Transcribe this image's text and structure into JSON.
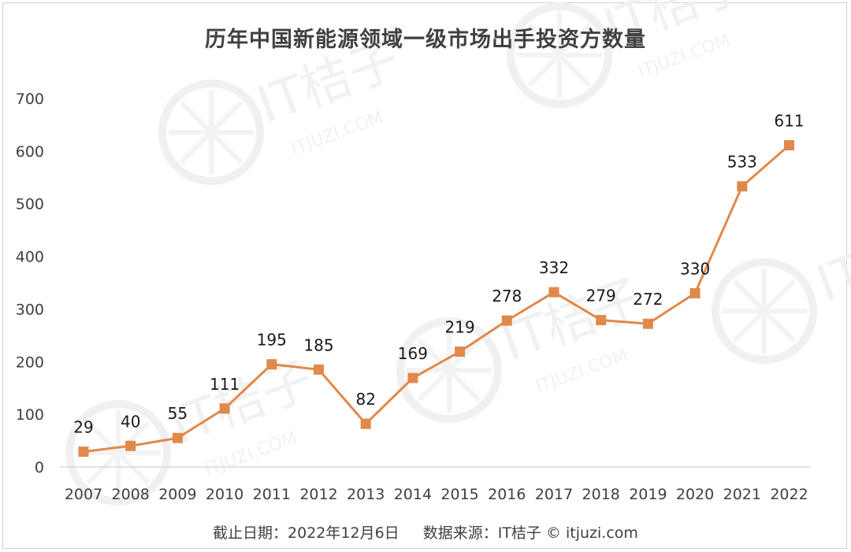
{
  "chart_data": {
    "type": "line",
    "title": "历年中国新能源领域一级市场出手投资方数量",
    "categories": [
      "2007",
      "2008",
      "2009",
      "2010",
      "2011",
      "2012",
      "2013",
      "2014",
      "2015",
      "2016",
      "2017",
      "2018",
      "2019",
      "2020",
      "2021",
      "2022"
    ],
    "series": [
      {
        "values": [
          29,
          40,
          55,
          111,
          195,
          185,
          82,
          169,
          219,
          278,
          332,
          279,
          272,
          330,
          533,
          611
        ]
      }
    ],
    "ylim": [
      0,
      700
    ],
    "yticks": [
      0,
      100,
      200,
      300,
      400,
      500,
      600,
      700
    ],
    "grid": false,
    "legend": "none",
    "line_color": "#E0894A",
    "marker": "square"
  },
  "footer": {
    "date_note": "截止日期：2022年12月6日",
    "source_note": "数据来源：IT桔子 © itjuzi.com"
  },
  "watermark": {
    "brand": "IT桔子",
    "site": "ITJUZI.COM"
  }
}
